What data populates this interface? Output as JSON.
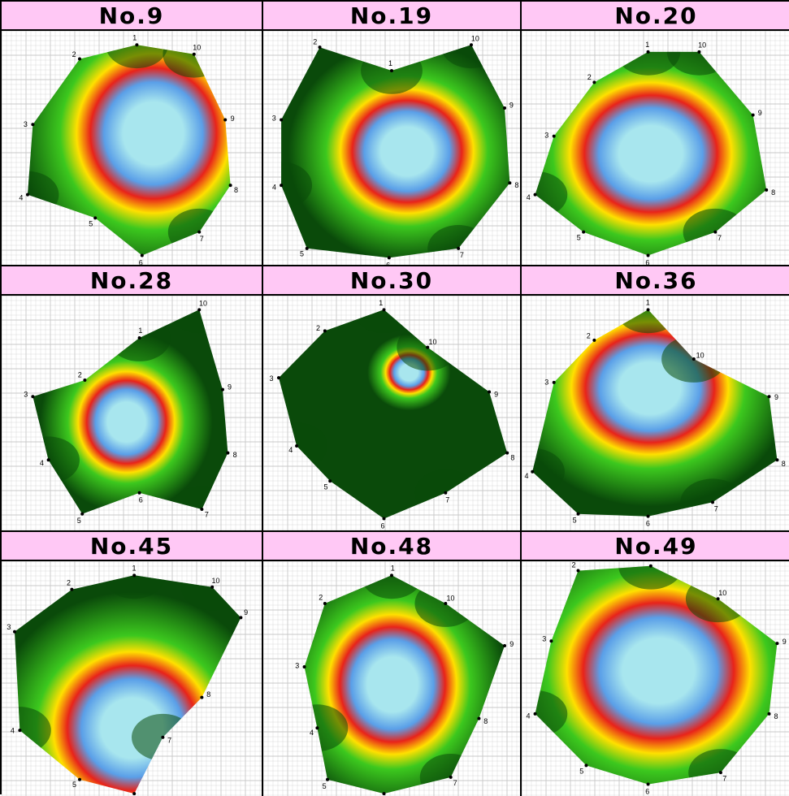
{
  "panels": [
    {
      "title": "No.9",
      "points": [
        "1",
        "2",
        "3",
        "4",
        "5",
        "6",
        "7",
        "8",
        "9",
        "10"
      ]
    },
    {
      "title": "No.19",
      "points": [
        "1",
        "2",
        "3",
        "4",
        "5",
        "6",
        "7",
        "8",
        "9",
        "10"
      ]
    },
    {
      "title": "No.20",
      "points": [
        "1",
        "2",
        "3",
        "4",
        "5",
        "6",
        "7",
        "8",
        "9",
        "10"
      ]
    },
    {
      "title": "No.28",
      "points": [
        "1",
        "2",
        "3",
        "4",
        "5",
        "6",
        "7",
        "8",
        "9",
        "10"
      ]
    },
    {
      "title": "No.30",
      "points": [
        "1",
        "2",
        "3",
        "4",
        "5",
        "6",
        "7",
        "8",
        "9",
        "10"
      ]
    },
    {
      "title": "No.36",
      "points": [
        "1",
        "2",
        "3",
        "4",
        "5",
        "6",
        "7",
        "8",
        "9",
        "10"
      ]
    },
    {
      "title": "No.45",
      "points": [
        "1",
        "2",
        "3",
        "4",
        "5",
        "6",
        "7",
        "8",
        "9",
        "10"
      ]
    },
    {
      "title": "No.48",
      "points": [
        "1",
        "2",
        "3",
        "4",
        "5",
        "6",
        "7",
        "8",
        "9",
        "10"
      ]
    },
    {
      "title": "No.49",
      "points": [
        "1",
        "2",
        "3",
        "4",
        "5",
        "6",
        "7",
        "8",
        "9",
        "10"
      ]
    }
  ],
  "colors": {
    "header_bg": "#ffc8f5",
    "low": "#a8e6ee",
    "blue": "#5a9fe8",
    "red": "#e8231a",
    "yellow": "#ffe000",
    "green": "#3cc81e",
    "dark_green": "#0a4a0a"
  },
  "icons": {
    "point_marker": "dot-icon"
  }
}
